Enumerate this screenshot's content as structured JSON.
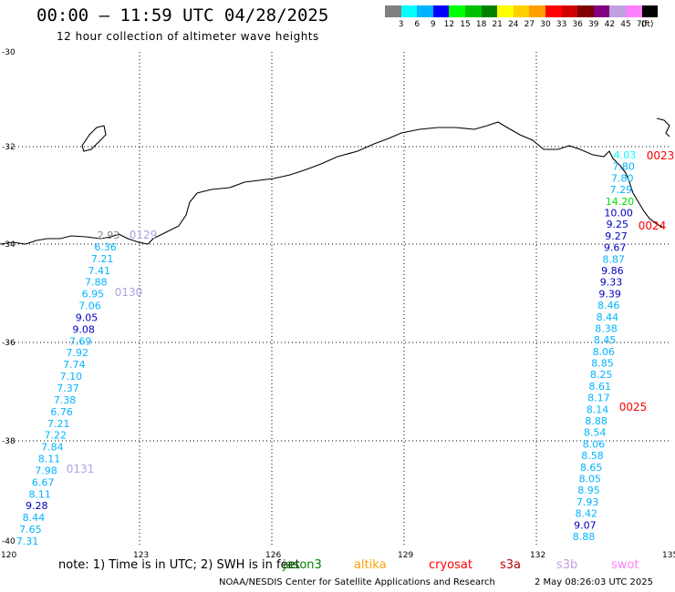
{
  "title": "00:00 – 11:59 UTC 04/28/2025",
  "subtitle": "12 hour collection of altimeter wave heights",
  "colorbar": {
    "colors": [
      "#808080",
      "#00ffff",
      "#00b4ff",
      "#0000ff",
      "#00ff00",
      "#00c000",
      "#008000",
      "#ffff00",
      "#ffd000",
      "#ffa000",
      "#ff0000",
      "#d00000",
      "#800000",
      "#800080",
      "#c0a0e0",
      "#ff80ff",
      "#000000"
    ],
    "labels": [
      "3",
      "6",
      "9",
      "12",
      "15",
      "18",
      "21",
      "24",
      "27",
      "30",
      "33",
      "36",
      "39",
      "42",
      "45",
      "70",
      "(ft)"
    ]
  },
  "map": {
    "lat_labels": [
      "-30",
      "-32",
      "-34",
      "-36",
      "-38",
      "-40"
    ],
    "lon_labels": [
      "120",
      "123",
      "126",
      "129",
      "132",
      "135"
    ]
  },
  "tracks": [
    {
      "name": "west-track",
      "time_labels": [
        {
          "text": "0129",
          "color": "#b0a0e0"
        },
        {
          "text": "0130",
          "color": "#b0a0e0"
        },
        {
          "text": "0131",
          "color": "#b0a0e0"
        }
      ],
      "readings": [
        {
          "v": "2.93",
          "c": "#808080"
        },
        {
          "v": "6.36",
          "c": "#00b4ff"
        },
        {
          "v": "7.21",
          "c": "#00b4ff"
        },
        {
          "v": "7.41",
          "c": "#00b4ff"
        },
        {
          "v": "7.88",
          "c": "#00b4ff"
        },
        {
          "v": "6.95",
          "c": "#00b4ff"
        },
        {
          "v": "7.06",
          "c": "#00b4ff"
        },
        {
          "v": "9.05",
          "c": "#0000c0"
        },
        {
          "v": "9.08",
          "c": "#0000c0"
        },
        {
          "v": "7.69",
          "c": "#00b4ff"
        },
        {
          "v": "7.92",
          "c": "#00b4ff"
        },
        {
          "v": "7.74",
          "c": "#00b4ff"
        },
        {
          "v": "7.10",
          "c": "#00b4ff"
        },
        {
          "v": "7.37",
          "c": "#00b4ff"
        },
        {
          "v": "7.38",
          "c": "#00b4ff"
        },
        {
          "v": "6.76",
          "c": "#00b4ff"
        },
        {
          "v": "7.21",
          "c": "#00b4ff"
        },
        {
          "v": "7.22",
          "c": "#00b4ff"
        },
        {
          "v": "7.84",
          "c": "#00b4ff"
        },
        {
          "v": "8.11",
          "c": "#00b4ff"
        },
        {
          "v": "7.98",
          "c": "#00b4ff"
        },
        {
          "v": "6.67",
          "c": "#00b4ff"
        },
        {
          "v": "8.11",
          "c": "#00b4ff"
        },
        {
          "v": "9.28",
          "c": "#0000c0"
        },
        {
          "v": "8.44",
          "c": "#00b4ff"
        },
        {
          "v": "7.65",
          "c": "#00b4ff"
        },
        {
          "v": "7.31",
          "c": "#00b4ff"
        }
      ]
    },
    {
      "name": "east-track",
      "time_labels": [
        {
          "text": "0023",
          "color": "#ff0000"
        },
        {
          "text": "0024",
          "color": "#ff0000"
        },
        {
          "text": "0025",
          "color": "#ff0000"
        }
      ],
      "readings": [
        {
          "v": "4.03",
          "c": "#00ffff"
        },
        {
          "v": "7.80",
          "c": "#00b4ff"
        },
        {
          "v": "7.80",
          "c": "#00b4ff"
        },
        {
          "v": "7.29",
          "c": "#00b4ff"
        },
        {
          "v": "14.20",
          "c": "#00e000"
        },
        {
          "v": "10.00",
          "c": "#0000c0"
        },
        {
          "v": "9.25",
          "c": "#0000c0"
        },
        {
          "v": "9.27",
          "c": "#0000c0"
        },
        {
          "v": "9.67",
          "c": "#0000c0"
        },
        {
          "v": "8.87",
          "c": "#00b4ff"
        },
        {
          "v": "9.86",
          "c": "#0000c0"
        },
        {
          "v": "9.33",
          "c": "#0000c0"
        },
        {
          "v": "9.39",
          "c": "#0000c0"
        },
        {
          "v": "8.46",
          "c": "#00b4ff"
        },
        {
          "v": "8.44",
          "c": "#00b4ff"
        },
        {
          "v": "8.38",
          "c": "#00b4ff"
        },
        {
          "v": "8.45",
          "c": "#00b4ff"
        },
        {
          "v": "8.06",
          "c": "#00b4ff"
        },
        {
          "v": "8.85",
          "c": "#00b4ff"
        },
        {
          "v": "8.25",
          "c": "#00b4ff"
        },
        {
          "v": "8.61",
          "c": "#00b4ff"
        },
        {
          "v": "8.17",
          "c": "#00b4ff"
        },
        {
          "v": "8.14",
          "c": "#00b4ff"
        },
        {
          "v": "8.88",
          "c": "#00b4ff"
        },
        {
          "v": "8.54",
          "c": "#00b4ff"
        },
        {
          "v": "8.06",
          "c": "#00b4ff"
        },
        {
          "v": "8.58",
          "c": "#00b4ff"
        },
        {
          "v": "8.65",
          "c": "#00b4ff"
        },
        {
          "v": "8.05",
          "c": "#00b4ff"
        },
        {
          "v": "8.95",
          "c": "#00b4ff"
        },
        {
          "v": "7.93",
          "c": "#00b4ff"
        },
        {
          "v": "8.42",
          "c": "#00b4ff"
        },
        {
          "v": "9.07",
          "c": "#0000c0"
        },
        {
          "v": "8.88",
          "c": "#00b4ff"
        }
      ]
    }
  ],
  "note": "note:  1) Time is in UTC; 2) SWH is in feet",
  "satellites": [
    {
      "name": "jason3",
      "color": "#008000"
    },
    {
      "name": "altika",
      "color": "#ffa000"
    },
    {
      "name": "cryosat",
      "color": "#ff0000"
    },
    {
      "name": "s3a",
      "color": "#c00000"
    },
    {
      "name": "s3b",
      "color": "#c0a0e0"
    },
    {
      "name": "swot",
      "color": "#ff80ff"
    }
  ],
  "footer": "NOAA/NESDIS Center for Satellite Applications and Research",
  "footer_date": "2 May 08:26:03 UTC 2025"
}
